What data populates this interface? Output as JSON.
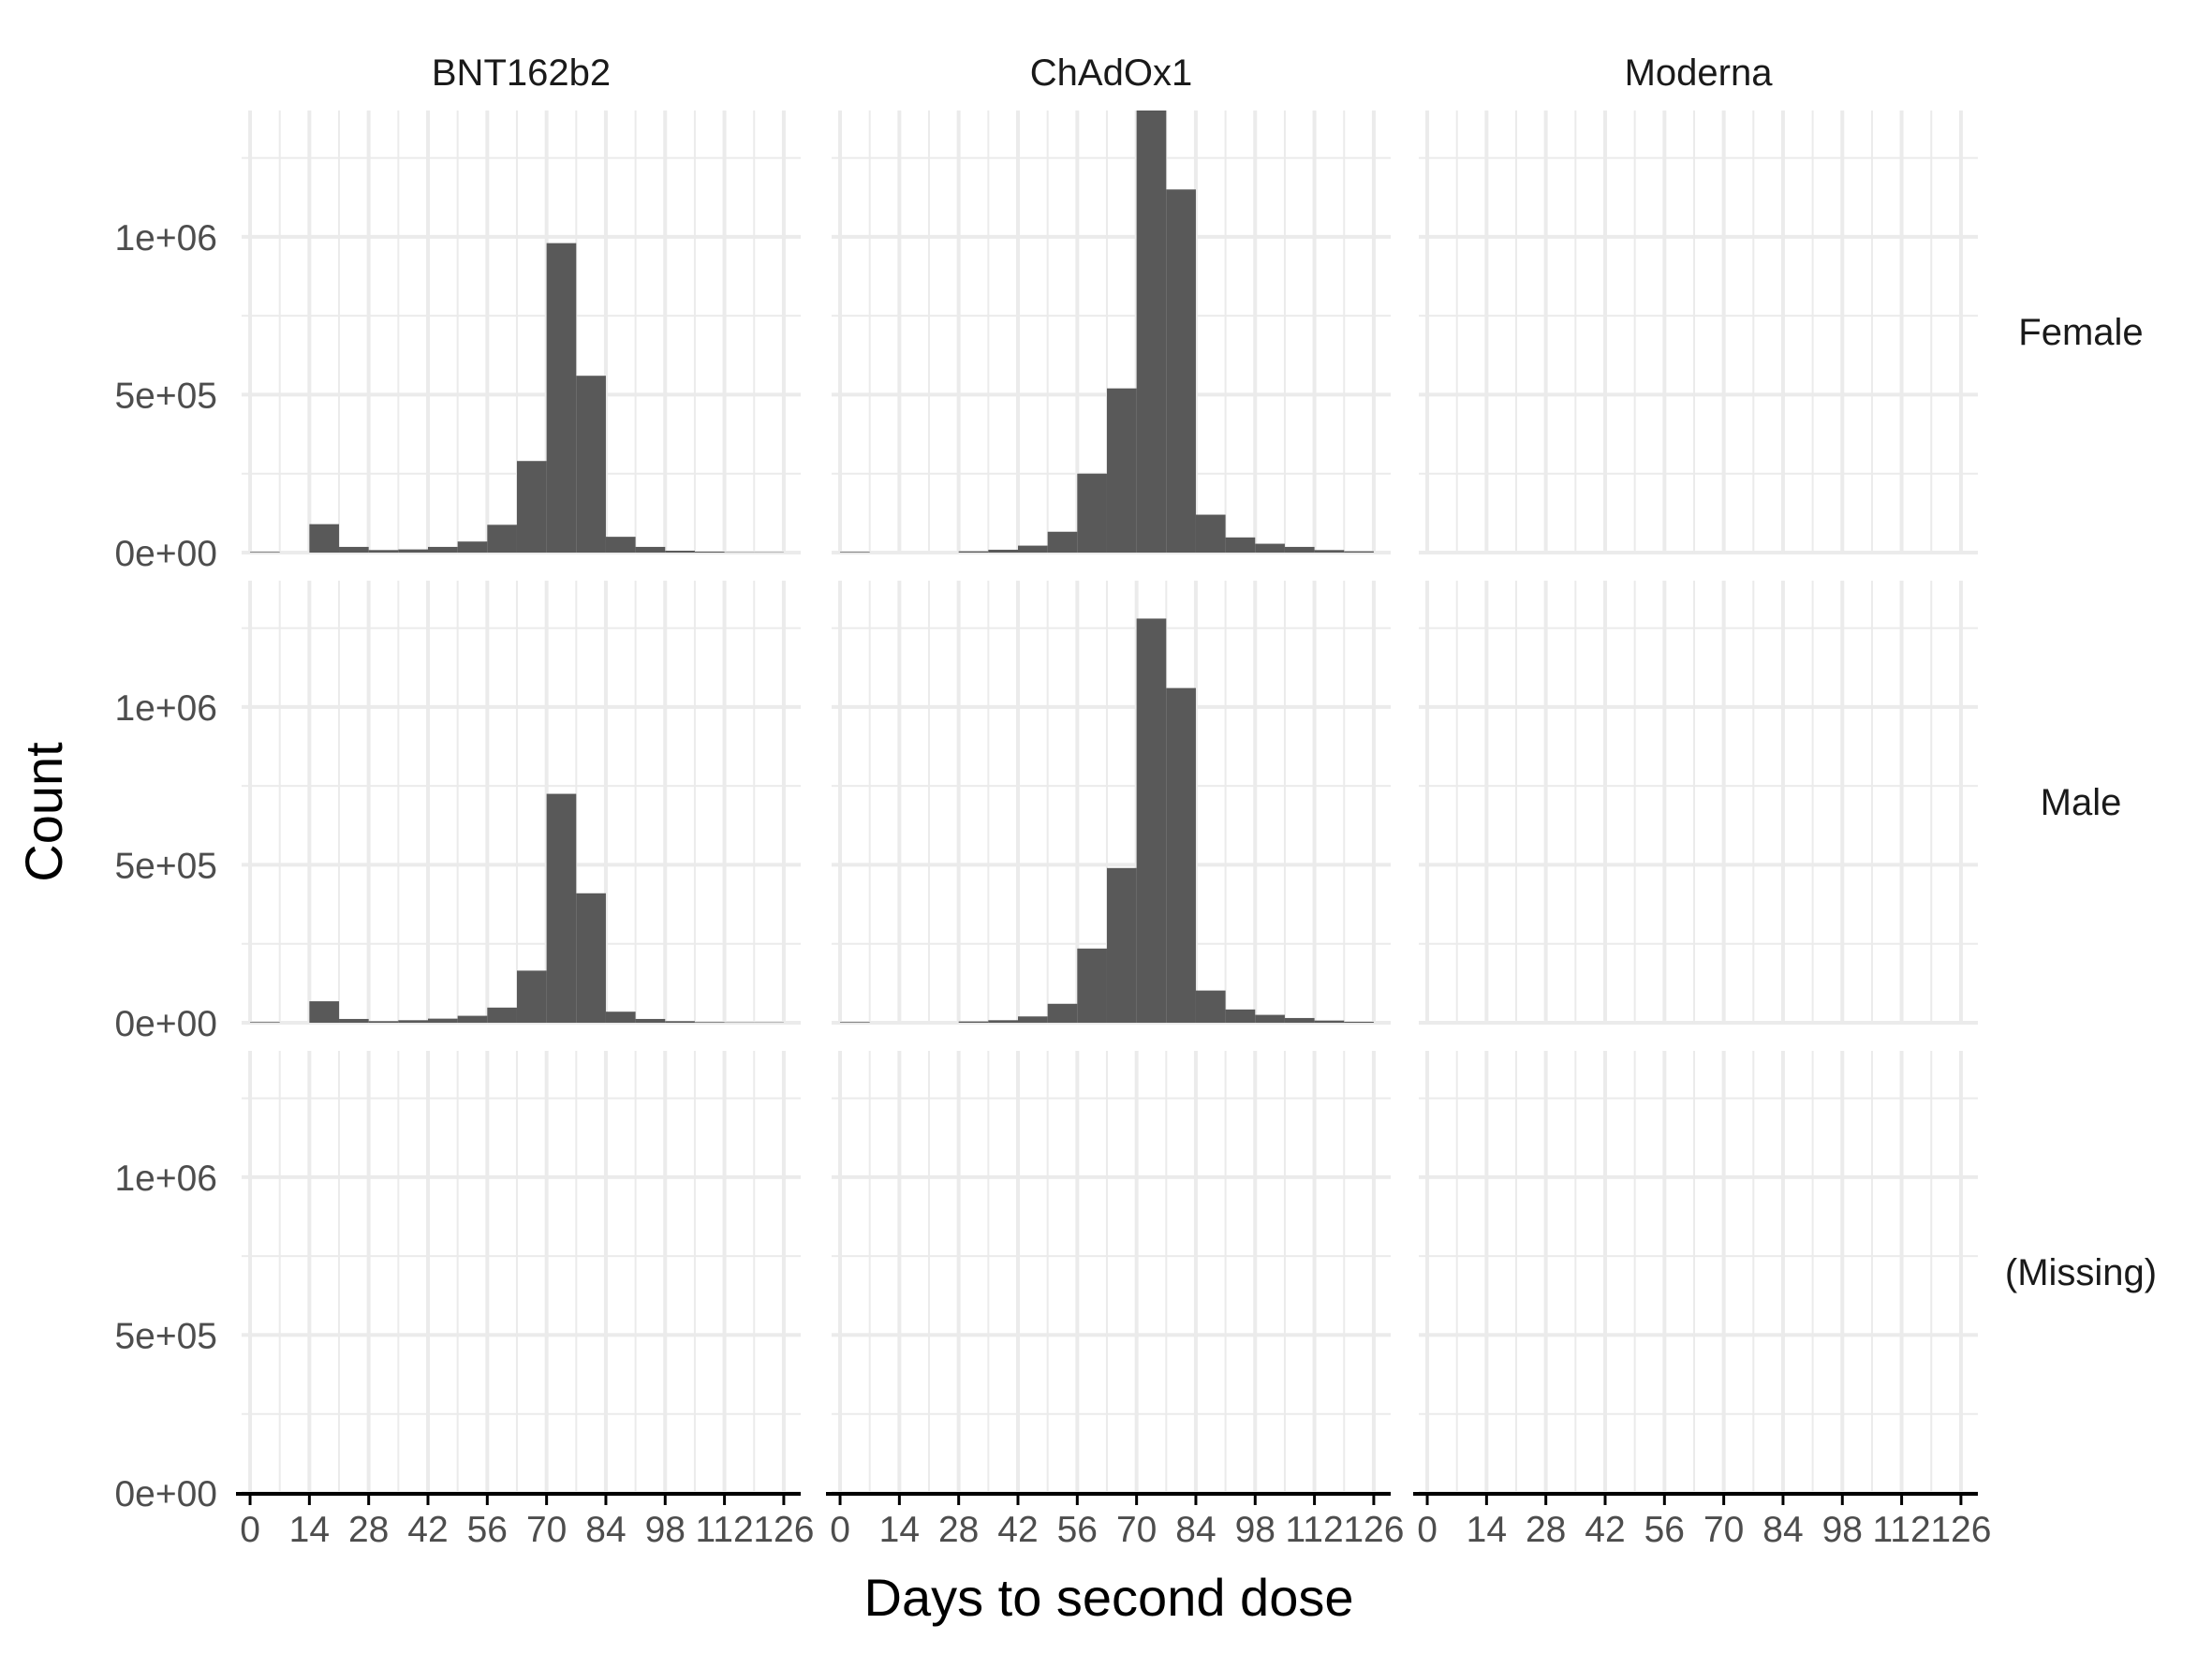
{
  "chart_data": {
    "type": "bar",
    "subtype": "faceted histogram",
    "xlabel": "Days to second dose",
    "ylabel": "Count",
    "x_ticks": [
      0,
      14,
      28,
      42,
      56,
      70,
      84,
      98,
      112,
      126
    ],
    "x_tick_labels": [
      "0",
      "14",
      "28",
      "42",
      "56",
      "70",
      "84",
      "98",
      "112",
      "126"
    ],
    "xlim": [
      -2,
      130
    ],
    "y_ticks": [
      0,
      500000,
      1000000
    ],
    "y_tick_labels": [
      "0e+00",
      "5e+05",
      "1e+06"
    ],
    "ylim": [
      0,
      1400000
    ],
    "bin_width": 7,
    "bin_starts": [
      0,
      7,
      14,
      21,
      28,
      35,
      42,
      49,
      56,
      63,
      70,
      77,
      84,
      91,
      98,
      105,
      112,
      119
    ],
    "columns": [
      "BNT162b2",
      "ChAdOx1",
      "Moderna"
    ],
    "rows": [
      "Female",
      "Male",
      "(Missing)"
    ],
    "panels": [
      {
        "column": "BNT162b2",
        "row": "Female",
        "values": [
          2000,
          0,
          90000,
          18000,
          8000,
          10000,
          18000,
          35000,
          88000,
          290000,
          980000,
          560000,
          50000,
          18000,
          6000,
          3000,
          1000,
          1000
        ]
      },
      {
        "column": "ChAdOx1",
        "row": "Female",
        "values": [
          2000,
          0,
          0,
          0,
          4000,
          9000,
          22000,
          66000,
          250000,
          520000,
          1400000,
          1150000,
          120000,
          48000,
          28000,
          18000,
          8000,
          4000
        ]
      },
      {
        "column": "Moderna",
        "row": "Female",
        "values": []
      },
      {
        "column": "BNT162b2",
        "row": "Male",
        "values": [
          2000,
          0,
          68000,
          12000,
          5000,
          8000,
          13000,
          22000,
          48000,
          165000,
          725000,
          410000,
          35000,
          12000,
          5000,
          2000,
          1000,
          1000
        ]
      },
      {
        "column": "ChAdOx1",
        "row": "Male",
        "values": [
          2000,
          0,
          0,
          0,
          4000,
          8000,
          20000,
          60000,
          235000,
          490000,
          1280000,
          1060000,
          102000,
          42000,
          25000,
          15000,
          7000,
          3000
        ]
      },
      {
        "column": "Moderna",
        "row": "Male",
        "values": []
      },
      {
        "column": "BNT162b2",
        "row": "(Missing)",
        "values": []
      },
      {
        "column": "ChAdOx1",
        "row": "(Missing)",
        "values": []
      },
      {
        "column": "Moderna",
        "row": "(Missing)",
        "values": []
      }
    ],
    "grid": true,
    "bar_color": "#595959",
    "grid_color": "#ebebeb"
  }
}
